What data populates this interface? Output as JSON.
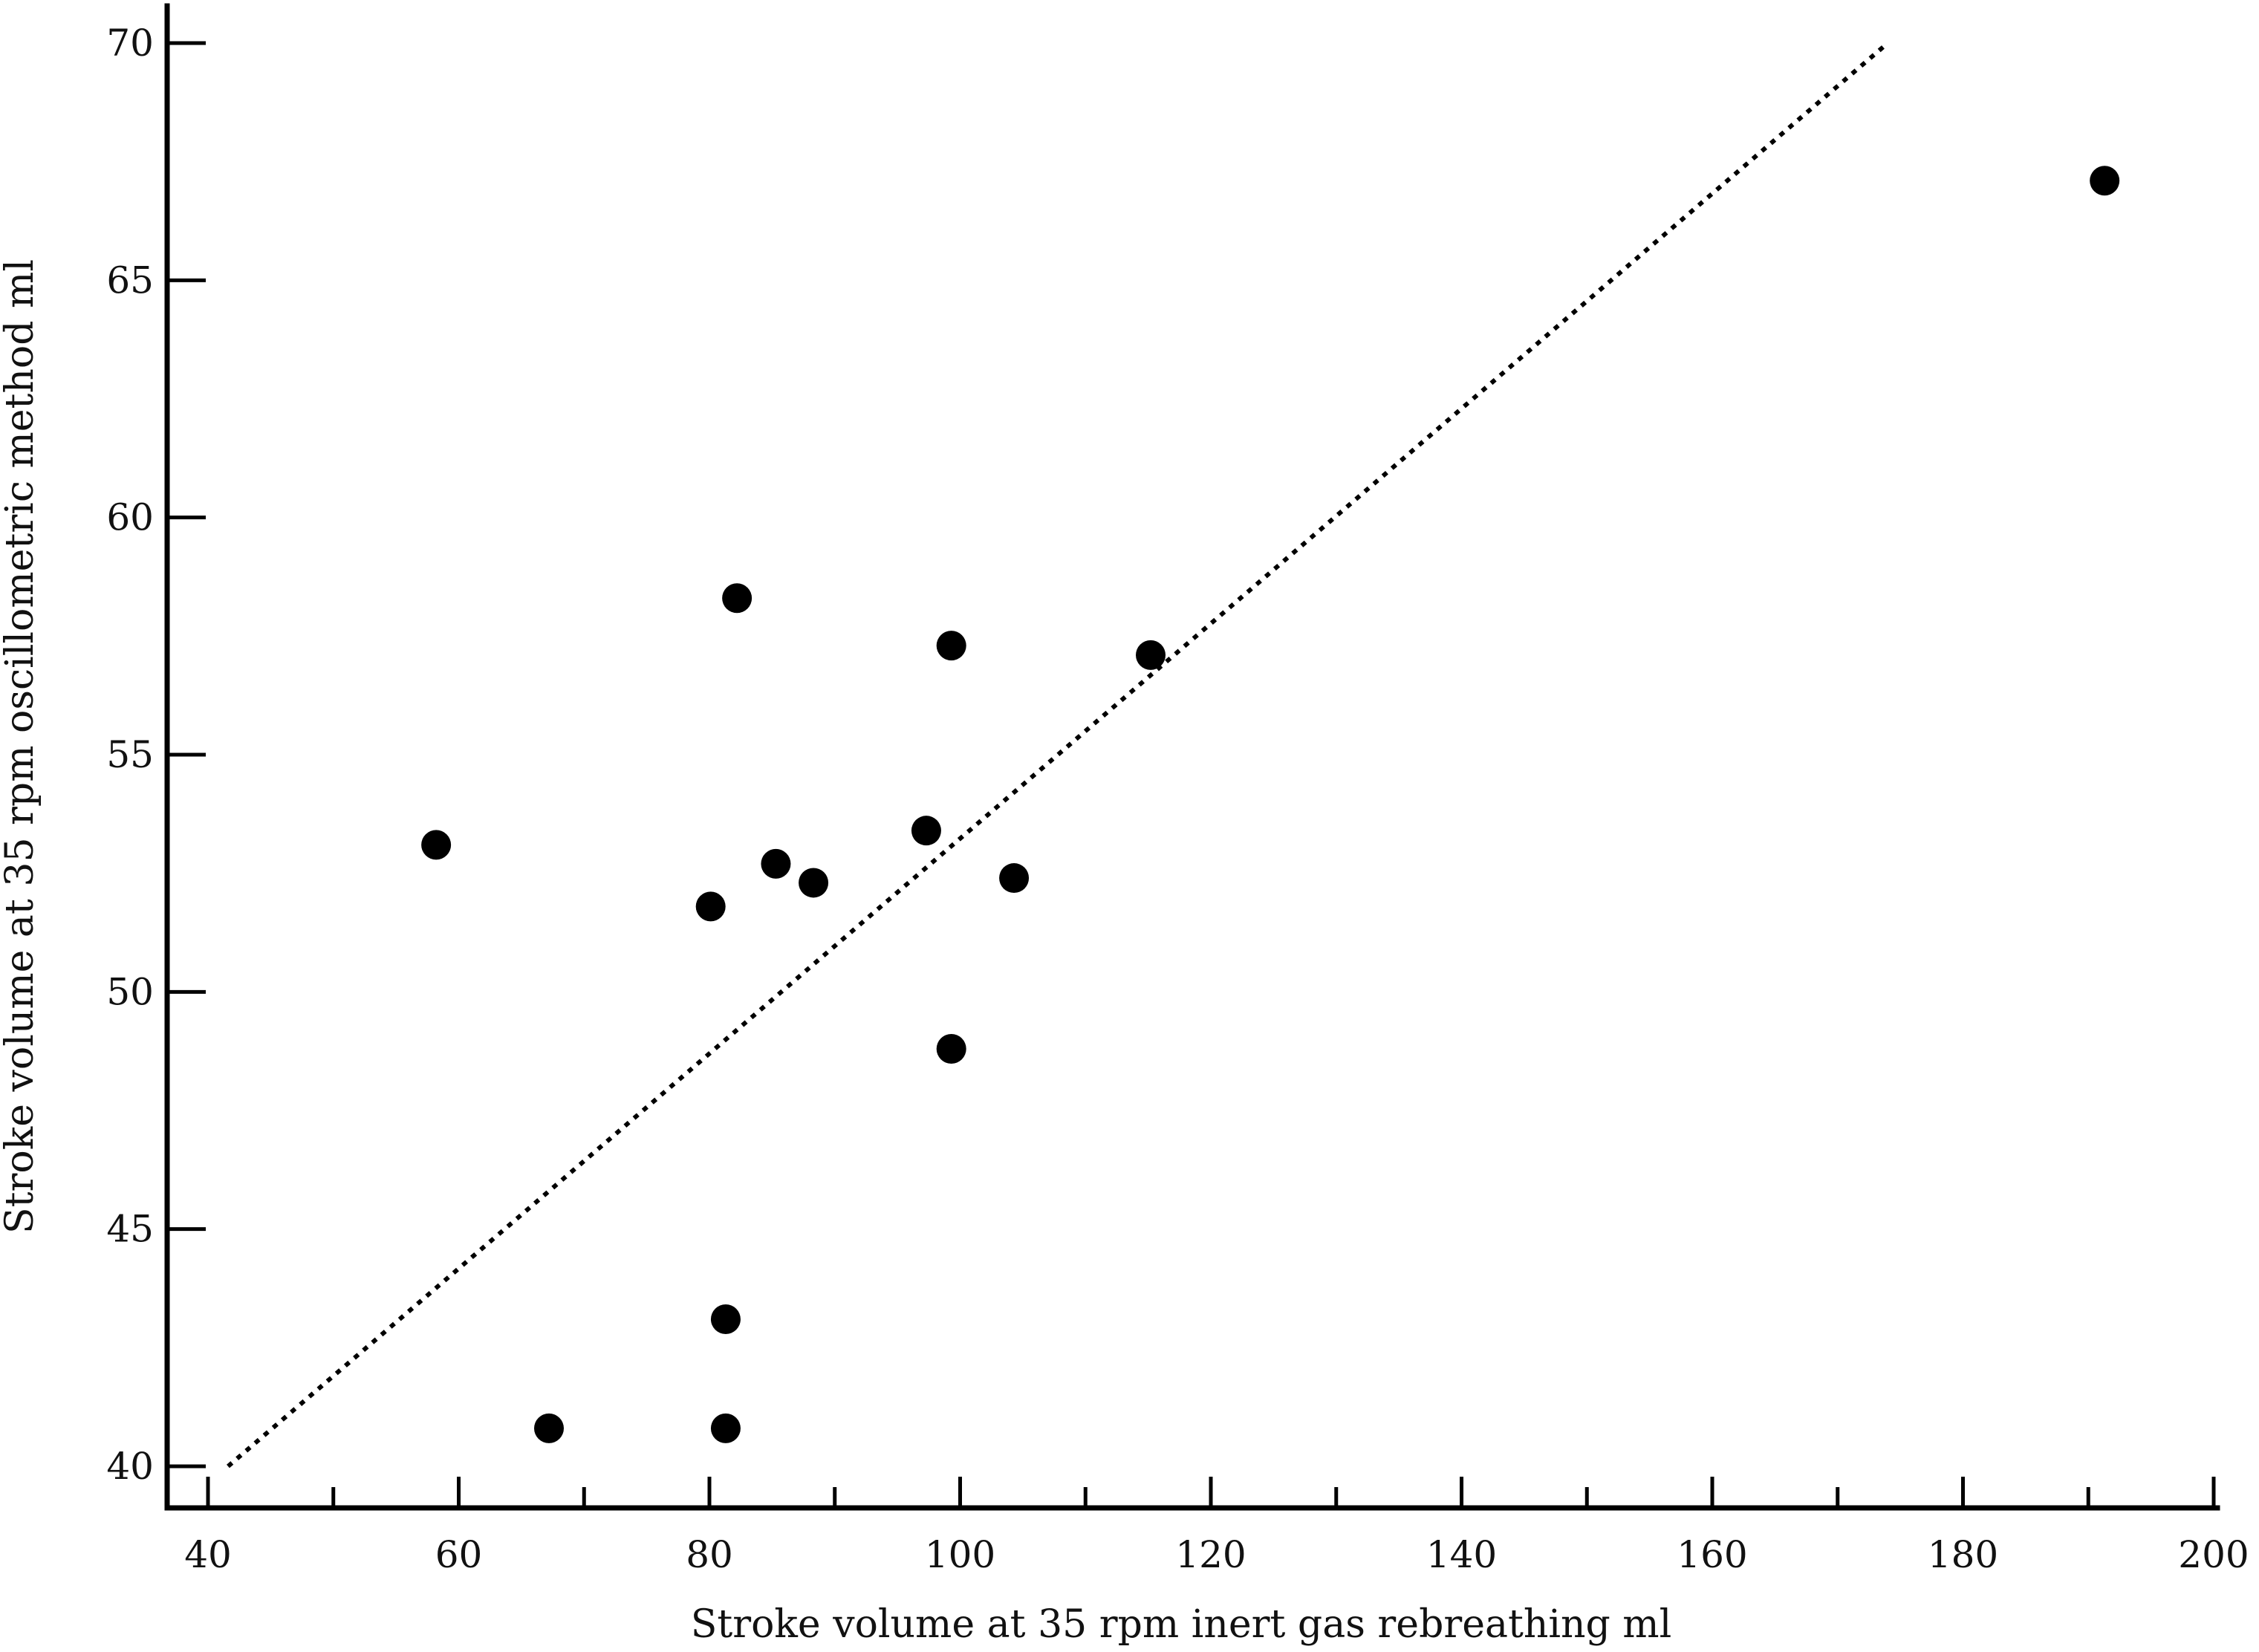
{
  "chart_data": {
    "type": "scatter",
    "xlabel": "Stroke volume at 35 rpm inert gas rebreathing ml",
    "ylabel": "Stroke volume at 35 rpm oscillometric method ml",
    "xlim": [
      37,
      204
    ],
    "ylim": [
      39.2,
      70.9
    ],
    "x_ticks": [
      40,
      60,
      80,
      100,
      120,
      140,
      160,
      180,
      200
    ],
    "x_minor_ticks": [
      50,
      70,
      90,
      110,
      130,
      150,
      170,
      190
    ],
    "y_ticks": [
      40,
      45,
      50,
      55,
      60,
      65,
      70
    ],
    "grid": false,
    "points": [
      {
        "x": 58.2,
        "y": 53.1
      },
      {
        "x": 67.2,
        "y": 40.8
      },
      {
        "x": 80.1,
        "y": 51.8
      },
      {
        "x": 81.3,
        "y": 43.1
      },
      {
        "x": 81.3,
        "y": 40.8
      },
      {
        "x": 82.2,
        "y": 58.3
      },
      {
        "x": 85.3,
        "y": 52.7
      },
      {
        "x": 88.3,
        "y": 52.3
      },
      {
        "x": 97.3,
        "y": 53.4
      },
      {
        "x": 99.3,
        "y": 57.3
      },
      {
        "x": 99.3,
        "y": 48.8
      },
      {
        "x": 104.3,
        "y": 52.4
      },
      {
        "x": 115.2,
        "y": 57.1
      },
      {
        "x": 191.3,
        "y": 67.1
      }
    ],
    "reference_line": {
      "style": "dotted",
      "from": {
        "x": 41.6,
        "y": 40
      },
      "to": {
        "x": 174,
        "y": 70
      }
    }
  }
}
